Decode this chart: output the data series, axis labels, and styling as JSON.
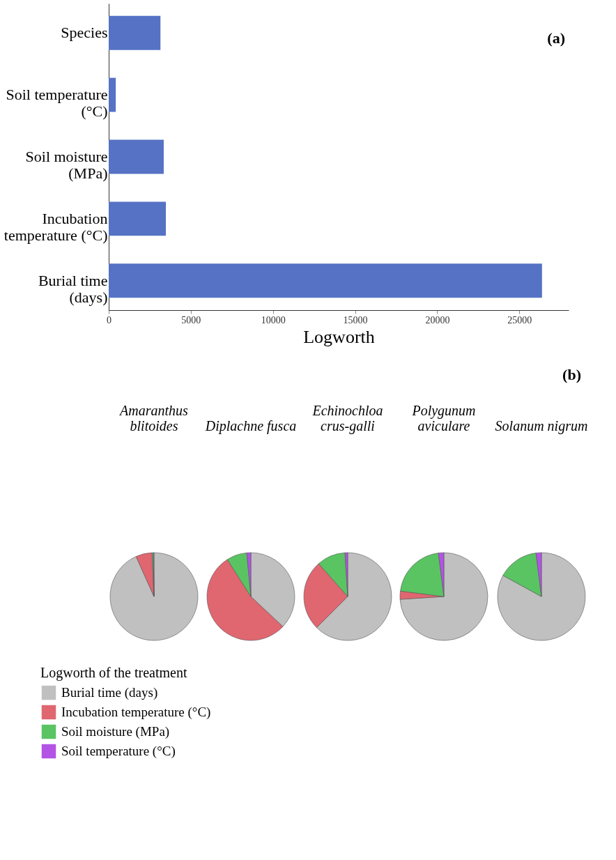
{
  "chart_data": [
    {
      "type": "bar",
      "orientation": "horizontal",
      "categories": [
        "Species",
        "Soil temperature\n(°C)",
        "Soil moisture\n(MPa)",
        "Incubation\ntemperature (°C)",
        "Burial time\n(days)"
      ],
      "values": [
        3150,
        430,
        3350,
        3480,
        26380
      ],
      "color": "#5572c4",
      "xlim": [
        0,
        28000
      ],
      "xticks": [
        0,
        5000,
        10000,
        15000,
        20000,
        25000
      ],
      "xlabel": "Logworth",
      "grid": false,
      "annotations": [
        "(a)"
      ]
    },
    {
      "type": "pie",
      "title": "Amaranthus\nblitoides",
      "categories": [
        "Burial time (days)",
        "Incubation temperature (°C)",
        "Soil moisture (MPa)",
        "Soil temperature (°C)"
      ],
      "values": [
        93.3,
        6,
        0.5,
        0.2
      ],
      "colors": [
        "#c0c0c0",
        "#e06670",
        "#5ac463",
        "#b353e6"
      ],
      "legend": "bottom left",
      "legend_title": "Logworth of the treatment"
    },
    {
      "type": "pie",
      "title": "Diplachne fusca",
      "values": [
        37,
        54,
        7.5,
        1.5
      ],
      "colors": [
        "#c0c0c0",
        "#e06670",
        "#5ac463",
        "#b353e6"
      ]
    },
    {
      "type": "pie",
      "title": "Echinochloa\ncrus-galli",
      "values": [
        62.5,
        26,
        10.5,
        1
      ],
      "colors": [
        "#c0c0c0",
        "#e06670",
        "#5ac463",
        "#b353e6"
      ]
    },
    {
      "type": "pie",
      "title": "Polygunum\naviculare",
      "values": [
        74,
        3,
        21,
        2
      ],
      "colors": [
        "#c0c0c0",
        "#e06670",
        "#5ac463",
        "#b353e6"
      ]
    },
    {
      "type": "pie",
      "title": "Solanum nigrum",
      "values": [
        83,
        0,
        15,
        2
      ],
      "colors": [
        "#c0c0c0",
        "#e06670",
        "#5ac463",
        "#b353e6"
      ],
      "annotations": [
        "(b)"
      ]
    }
  ]
}
